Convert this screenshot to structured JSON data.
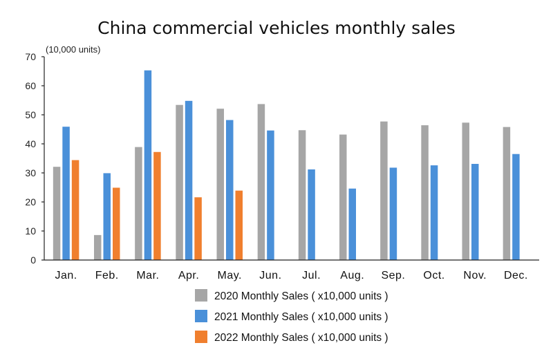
{
  "chart_data": {
    "type": "bar",
    "title": "China commercial vehicles monthly sales",
    "unit_label": "(10,000 units)",
    "categories": [
      "Jan.",
      "Feb.",
      "Mar.",
      "Apr.",
      "May.",
      "Jun.",
      "Jul.",
      "Aug.",
      "Sep.",
      "Oct.",
      "Nov.",
      "Dec."
    ],
    "yticks": [
      0,
      10,
      20,
      30,
      40,
      50,
      60,
      70
    ],
    "ylim": [
      0,
      70
    ],
    "grid": false,
    "legend_position": "bottom",
    "series": [
      {
        "name": "2020 Monthly Sales ( x10,000 units )",
        "color": "#a6a6a6",
        "values": [
          32.1,
          8.6,
          38.9,
          53.4,
          52.1,
          53.7,
          44.7,
          43.2,
          47.7,
          46.4,
          47.3,
          45.8
        ]
      },
      {
        "name": "2021 Monthly Sales ( x10,000 units )",
        "color": "#4a90d9",
        "values": [
          45.9,
          29.9,
          65.3,
          54.8,
          48.2,
          44.6,
          31.2,
          24.6,
          31.8,
          32.6,
          33.1,
          36.5
        ]
      },
      {
        "name": "2022 Monthly Sales ( x10,000 units )",
        "color": "#f07f2e",
        "values": [
          34.4,
          24.9,
          37.2,
          21.6,
          23.9,
          null,
          null,
          null,
          null,
          null,
          null,
          null
        ]
      }
    ]
  }
}
